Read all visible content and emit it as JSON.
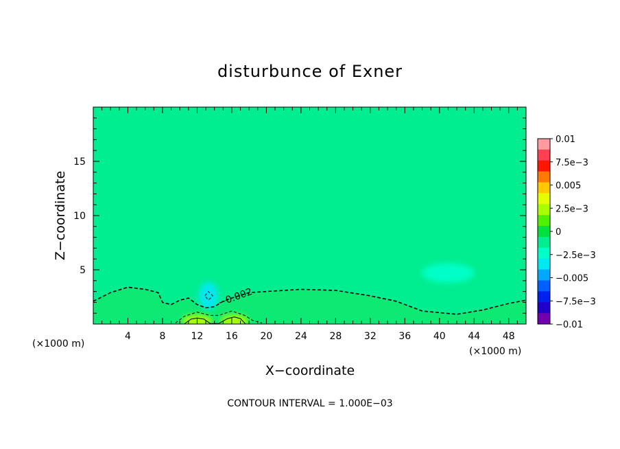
{
  "chart_data": {
    "type": "heatmap",
    "title": "disturbunce of Exner",
    "xlabel": "X−coordinate",
    "ylabel": "Z−coordinate",
    "x_unit_left": "(×1000 m)",
    "x_unit_right": "(×1000 m)",
    "xlim": [
      0,
      50
    ],
    "ylim": [
      0,
      20
    ],
    "xticks": [
      4,
      8,
      12,
      16,
      20,
      24,
      28,
      32,
      36,
      40,
      44,
      48
    ],
    "yticks": [
      5,
      10,
      15
    ],
    "background_value": 0,
    "contour_interval_text": "CONTOUR INTERVAL = 1.000E−03",
    "contour_label": "−0.002",
    "colorbar": {
      "ticks": [
        "0.01",
        "7.5e−3",
        "0.005",
        "2.5e−3",
        "0",
        "−2.5e−3",
        "−0.005",
        "−7.5e−3",
        "−0.01"
      ],
      "colors": [
        "#ff9aa0",
        "#ff4050",
        "#ff1500",
        "#ff7a00",
        "#ffc800",
        "#e6ff00",
        "#a8ff00",
        "#50f000",
        "#00e040",
        "#00ee90",
        "#00ffc8",
        "#00e8f0",
        "#00a8ff",
        "#0060ff",
        "#0020ee",
        "#2000c8",
        "#7000b0"
      ],
      "range": [
        -0.01,
        0.01
      ]
    },
    "features": [
      {
        "kind": "anomaly",
        "x": 13.3,
        "z": 2.6,
        "value": -0.0035
      },
      {
        "kind": "anomaly",
        "x": 41,
        "z": 4.7,
        "value": -0.0028
      },
      {
        "kind": "anomaly",
        "x": 12,
        "z": 0.3,
        "value": 0.0025
      },
      {
        "kind": "anomaly",
        "x": 16.3,
        "z": 0.3,
        "value": 0.0025
      }
    ],
    "contours": [
      {
        "level": -0.002,
        "style": "dashed",
        "points": [
          [
            0,
            2.1
          ],
          [
            2,
            2.9
          ],
          [
            4,
            3.4
          ],
          [
            6,
            3.2
          ],
          [
            7.5,
            2.9
          ],
          [
            8,
            2
          ],
          [
            9,
            1.8
          ],
          [
            10,
            2.2
          ],
          [
            10.5,
            2.3
          ],
          [
            11,
            2.4
          ],
          [
            11.5,
            2.1
          ],
          [
            12,
            1.8
          ],
          [
            13,
            1.5
          ],
          [
            14,
            1.6
          ],
          [
            15,
            2.1
          ],
          [
            16,
            2.4
          ],
          [
            18,
            2.9
          ],
          [
            20,
            3
          ],
          [
            24,
            3.2
          ],
          [
            28,
            3.1
          ],
          [
            32,
            2.6
          ],
          [
            35,
            2.1
          ],
          [
            38,
            1.2
          ],
          [
            42,
            0.9
          ],
          [
            45,
            1.3
          ],
          [
            48,
            1.9
          ],
          [
            50,
            2.2
          ]
        ]
      },
      {
        "level": -0.001,
        "style": "dashed",
        "points": [
          [
            9.5,
            0.1
          ],
          [
            10.5,
            0.7
          ],
          [
            12,
            1.1
          ],
          [
            13.5,
            0.8
          ],
          [
            14.5,
            0.8
          ],
          [
            16,
            1.2
          ],
          [
            17.5,
            0.8
          ],
          [
            18.5,
            0.3
          ],
          [
            19.5,
            0.1
          ]
        ]
      },
      {
        "level": 0.001,
        "style": "solid",
        "points": [
          [
            10.5,
            0
          ],
          [
            11.3,
            0.45
          ],
          [
            12,
            0.55
          ],
          [
            12.8,
            0.45
          ],
          [
            13.5,
            0.05
          ],
          [
            14.5,
            0.05
          ],
          [
            15.5,
            0.5
          ],
          [
            16.3,
            0.65
          ],
          [
            17,
            0.5
          ],
          [
            17.6,
            0
          ]
        ]
      },
      {
        "level": -0.003,
        "style": "dashed",
        "closed": true,
        "points": [
          [
            12.9,
            2.6
          ],
          [
            13.3,
            3.0
          ],
          [
            13.8,
            2.6
          ],
          [
            13.3,
            2.2
          ]
        ]
      }
    ]
  }
}
